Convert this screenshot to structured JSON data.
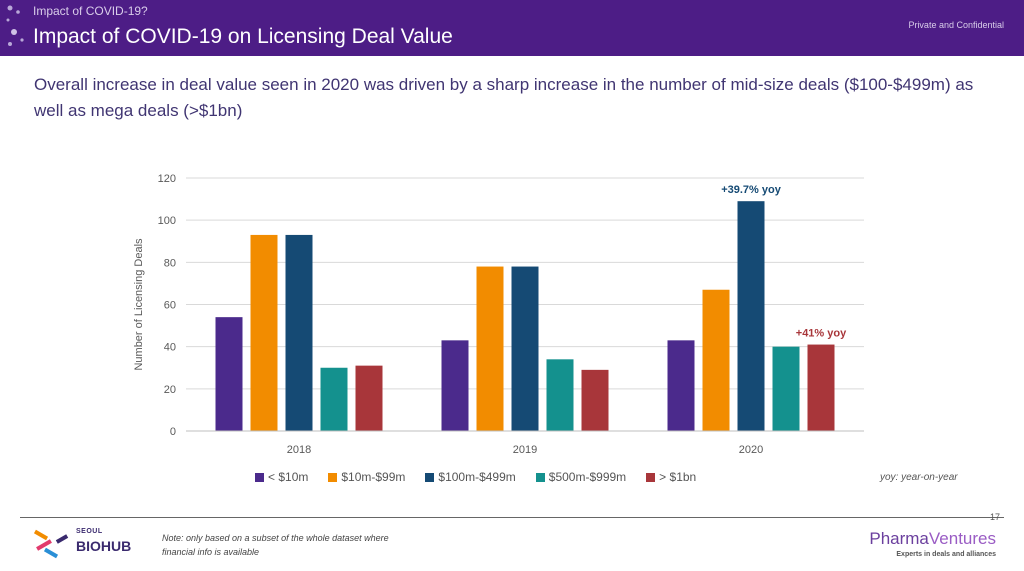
{
  "header": {
    "breadcrumb": "Impact of COVID-19?",
    "title": "Impact of COVID-19 on Licensing Deal Value",
    "confidential": "Private and Confidential",
    "background_color": "#4d1d86"
  },
  "subtitle": "Overall increase in deal value seen in 2020 was driven by a sharp increase in the number of mid-size deals ($100-$499m) as well as mega deals (>$1bn)",
  "chart_data": {
    "type": "bar",
    "title": "",
    "xlabel": "",
    "ylabel": "Number of Licensing Deals",
    "ylim": [
      0,
      120
    ],
    "yticks": [
      0,
      20,
      40,
      60,
      80,
      100,
      120
    ],
    "grid": true,
    "legend_position": "bottom",
    "categories": [
      "2018",
      "2019",
      "2020"
    ],
    "series": [
      {
        "name": "< $10m",
        "color": "#4b2a8c",
        "values": [
          54,
          43,
          43
        ]
      },
      {
        "name": "$10m-$99m",
        "color": "#f28c00",
        "values": [
          93,
          78,
          67
        ]
      },
      {
        "name": "$100m-$499m",
        "color": "#154a74",
        "values": [
          93,
          78,
          109
        ]
      },
      {
        "name": "$500m-$999m",
        "color": "#14918e",
        "values": [
          30,
          34,
          40
        ]
      },
      {
        "name": "> $1bn",
        "color": "#a8363a",
        "values": [
          31,
          29,
          41
        ]
      }
    ],
    "annotations": [
      {
        "text": "+39.7% yoy",
        "category": "2020",
        "series": "$100m-$499m",
        "color": "#154a74"
      },
      {
        "text": "+41% yoy",
        "category": "2020",
        "series": "> $1bn",
        "color": "#a8363a"
      }
    ]
  },
  "yoy_note": "yoy: year-on-year",
  "footer": {
    "page_number": "17",
    "note": "Note: only based on a subset of the whole dataset where financial info is available",
    "left_logo_small": "SEOUL",
    "left_logo_main": "BIOHUB",
    "right_logo_brand": "Pharma",
    "right_logo_brand2": "Ventures",
    "right_logo_tagline": "Experts in deals and alliances"
  }
}
